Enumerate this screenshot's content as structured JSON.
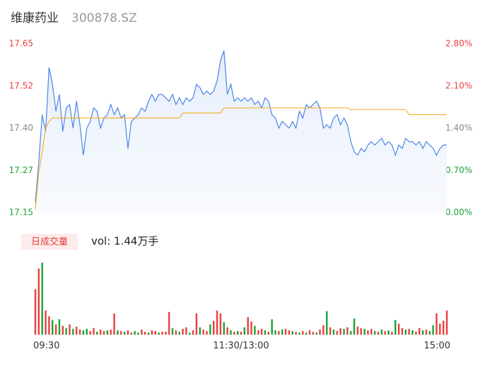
{
  "chart_data": {
    "type": "intraday",
    "title": "维康药业",
    "subtitle": "300878.SZ",
    "x": [
      0,
      2,
      4,
      6,
      8,
      10,
      12,
      14,
      16,
      18,
      20,
      22,
      24,
      26,
      28,
      30,
      32,
      34,
      36,
      38,
      40,
      42,
      44,
      46,
      48,
      50,
      52,
      54,
      56,
      58,
      60,
      62,
      64,
      66,
      68,
      70,
      72,
      74,
      76,
      78,
      80,
      82,
      84,
      86,
      88,
      90,
      92,
      94,
      96,
      98,
      100,
      102,
      104,
      106,
      108,
      110,
      112,
      114,
      116,
      118,
      120,
      122,
      124,
      126,
      128,
      130,
      132,
      134,
      136,
      138,
      140,
      142,
      144,
      146,
      148,
      150,
      152,
      154,
      156,
      158,
      160,
      162,
      164,
      166,
      168,
      170,
      172,
      174,
      176,
      178,
      180,
      182,
      184,
      186,
      188,
      190,
      192,
      194,
      196,
      198,
      200,
      202,
      204,
      206,
      208,
      210,
      212,
      214,
      216,
      218,
      220,
      222,
      224,
      226,
      228,
      230,
      232,
      234,
      236,
      238,
      240
    ],
    "xlim": [
      0,
      240
    ],
    "xticks": [
      {
        "value": 0,
        "label": "09:30"
      },
      {
        "value": 120,
        "label": "11:30/13:00"
      },
      {
        "value": 240,
        "label": "15:00"
      }
    ],
    "ylim": [
      17.15,
      17.65
    ],
    "yticks": [
      {
        "value": 17.15,
        "label": "17.15"
      },
      {
        "value": 17.275,
        "label": "17.27"
      },
      {
        "value": 17.4,
        "label": "17.40"
      },
      {
        "value": 17.525,
        "label": "17.52"
      },
      {
        "value": 17.65,
        "label": "17.65"
      }
    ],
    "ytick_colors": [
      "#1aa33a",
      "#1aa33a",
      "#888888",
      "#e8413f",
      "#e8413f"
    ],
    "y2lim": [
      0,
      2.8
    ],
    "y2ticks": [
      {
        "value": 0,
        "label": "0.00%"
      },
      {
        "value": 0.7,
        "label": "0.70%"
      },
      {
        "value": 1.4,
        "label": "1.40%"
      },
      {
        "value": 2.1,
        "label": "2.10%"
      },
      {
        "value": 2.8,
        "label": "2.80%"
      }
    ],
    "series": [
      {
        "name": "price",
        "color": "#4a86e8",
        "values": [
          17.18,
          17.3,
          17.44,
          17.39,
          17.58,
          17.53,
          17.45,
          17.5,
          17.39,
          17.46,
          17.47,
          17.4,
          17.48,
          17.41,
          17.32,
          17.4,
          17.42,
          17.46,
          17.45,
          17.4,
          17.43,
          17.44,
          17.47,
          17.44,
          17.46,
          17.43,
          17.44,
          17.34,
          17.42,
          17.43,
          17.44,
          17.46,
          17.45,
          17.48,
          17.5,
          17.48,
          17.5,
          17.5,
          17.49,
          17.48,
          17.5,
          17.47,
          17.49,
          17.47,
          17.49,
          17.48,
          17.49,
          17.53,
          17.52,
          17.5,
          17.51,
          17.5,
          17.51,
          17.54,
          17.6,
          17.63,
          17.5,
          17.53,
          17.48,
          17.49,
          17.48,
          17.49,
          17.48,
          17.49,
          17.47,
          17.48,
          17.46,
          17.49,
          17.48,
          17.44,
          17.43,
          17.4,
          17.42,
          17.41,
          17.4,
          17.42,
          17.4,
          17.45,
          17.43,
          17.47,
          17.46,
          17.47,
          17.48,
          17.46,
          17.4,
          17.41,
          17.4,
          17.43,
          17.44,
          17.41,
          17.43,
          17.41,
          17.36,
          17.33,
          17.32,
          17.34,
          17.33,
          17.35,
          17.36,
          17.35,
          17.36,
          17.37,
          17.35,
          17.36,
          17.35,
          17.32,
          17.35,
          17.34,
          17.37,
          17.36,
          17.36,
          17.35,
          17.36,
          17.34,
          17.36,
          17.35,
          17.34,
          17.32,
          17.34,
          17.35,
          17.35
        ]
      },
      {
        "name": "average",
        "color": "#f2b233",
        "values": [
          17.16,
          17.27,
          17.33,
          17.4,
          17.42,
          17.43,
          17.43,
          17.43,
          17.43,
          17.43,
          17.43,
          17.43,
          17.43,
          17.43,
          17.43,
          17.43,
          17.43,
          17.43,
          17.43,
          17.43,
          17.43,
          17.43,
          17.43,
          17.43,
          17.43,
          17.43,
          17.43,
          17.43,
          17.43,
          17.43,
          17.43,
          17.43,
          17.43,
          17.43,
          17.43,
          17.43,
          17.43,
          17.43,
          17.43,
          17.43,
          17.43,
          17.43,
          17.43,
          17.445,
          17.445,
          17.445,
          17.445,
          17.445,
          17.445,
          17.445,
          17.445,
          17.445,
          17.445,
          17.445,
          17.445,
          17.46,
          17.46,
          17.46,
          17.46,
          17.46,
          17.46,
          17.46,
          17.46,
          17.46,
          17.46,
          17.46,
          17.46,
          17.46,
          17.46,
          17.46,
          17.46,
          17.46,
          17.46,
          17.46,
          17.46,
          17.46,
          17.46,
          17.46,
          17.46,
          17.46,
          17.46,
          17.46,
          17.46,
          17.46,
          17.46,
          17.46,
          17.46,
          17.46,
          17.46,
          17.46,
          17.46,
          17.46,
          17.455,
          17.455,
          17.455,
          17.455,
          17.455,
          17.455,
          17.455,
          17.455,
          17.455,
          17.455,
          17.455,
          17.455,
          17.455,
          17.455,
          17.455,
          17.455,
          17.455,
          17.44,
          17.44,
          17.44,
          17.44,
          17.44,
          17.44,
          17.44,
          17.44,
          17.44,
          17.44,
          17.44,
          17.44
        ]
      }
    ],
    "volume_legend": "日成交量",
    "volume_total": "vol: 1.44万手",
    "volume": {
      "up_color": "#e8413f",
      "down_color": "#1aa33a",
      "ylim": [
        0,
        1000
      ],
      "values": [
        620,
        900,
        980,
        330,
        250,
        200,
        140,
        210,
        120,
        90,
        140,
        80,
        110,
        70,
        60,
        80,
        50,
        90,
        40,
        70,
        50,
        60,
        70,
        290,
        60,
        50,
        40,
        60,
        30,
        50,
        30,
        70,
        40,
        30,
        60,
        50,
        30,
        40,
        40,
        310,
        90,
        60,
        40,
        80,
        100,
        30,
        60,
        290,
        100,
        70,
        50,
        140,
        190,
        330,
        290,
        170,
        100,
        60,
        40,
        50,
        40,
        100,
        240,
        180,
        120,
        60,
        80,
        60,
        40,
        210,
        60,
        50,
        70,
        80,
        60,
        50,
        40,
        30,
        50,
        30,
        60,
        40,
        30,
        70,
        130,
        320,
        100,
        70,
        50,
        90,
        80,
        100,
        50,
        220,
        110,
        90,
        80,
        60,
        80,
        50,
        40,
        70,
        50,
        60,
        40,
        200,
        150,
        90,
        70,
        80,
        60,
        40,
        90,
        60,
        70,
        50,
        130,
        290,
        150,
        190,
        330
      ],
      "directions": [
        "up",
        "up",
        "down",
        "up",
        "up",
        "down",
        "up",
        "down",
        "up",
        "down",
        "up",
        "down",
        "up",
        "up",
        "down",
        "down",
        "up",
        "up",
        "down",
        "up",
        "up",
        "down",
        "up",
        "up",
        "down",
        "up",
        "down",
        "up",
        "up",
        "down",
        "down",
        "up",
        "up",
        "down",
        "up",
        "up",
        "down",
        "up",
        "up",
        "up",
        "down",
        "up",
        "down",
        "up",
        "up",
        "down",
        "up",
        "up",
        "down",
        "up",
        "up",
        "down",
        "up",
        "up",
        "up",
        "down",
        "up",
        "down",
        "up",
        "down",
        "up",
        "down",
        "up",
        "up",
        "down",
        "up",
        "up",
        "down",
        "up",
        "down",
        "down",
        "up",
        "down",
        "up",
        "up",
        "down",
        "up",
        "down",
        "up",
        "down",
        "up",
        "up",
        "down",
        "up",
        "up",
        "down",
        "up",
        "down",
        "up",
        "up",
        "down",
        "up",
        "down",
        "down",
        "up",
        "up",
        "down",
        "up",
        "up",
        "down",
        "up",
        "down",
        "up",
        "down",
        "up",
        "down",
        "up",
        "up",
        "down",
        "up",
        "down",
        "up",
        "up",
        "down",
        "up",
        "down",
        "down",
        "up",
        "up",
        "up",
        "up"
      ]
    }
  }
}
